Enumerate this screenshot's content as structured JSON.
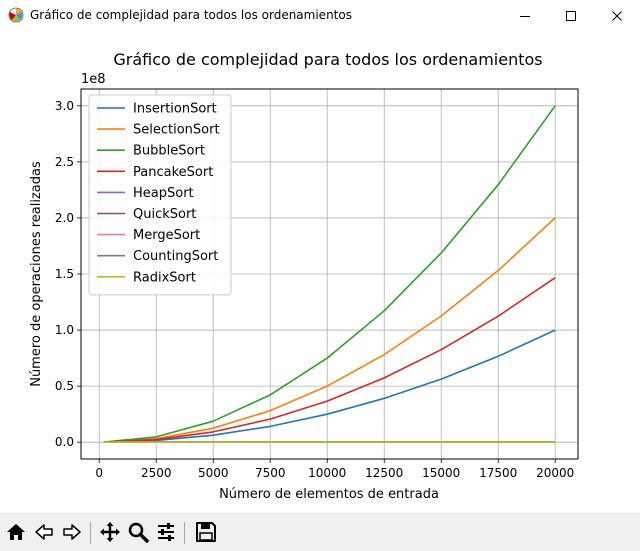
{
  "window": {
    "title": "Gráfico de complejidad para todos los ordenamientos",
    "icon": "matplotlib-icon",
    "controls": [
      "minimize-icon",
      "maximize-icon",
      "close-icon"
    ]
  },
  "toolbar": {
    "buttons": [
      "home-icon",
      "back-icon",
      "forward-icon",
      "pan-icon",
      "zoom-icon",
      "configure-subplots-icon",
      "save-icon"
    ]
  },
  "chart_data": {
    "type": "line",
    "title": "Gráfico de complejidad para todos los ordenamientos",
    "xlabel": "Número de elementos de entrada",
    "ylabel": "Número de operaciones realizadas",
    "y_offset_label": "1e8",
    "xlim": [
      -800,
      21000
    ],
    "ylim": [
      -0.15,
      3.15
    ],
    "x_ticks": [
      0,
      2500,
      5000,
      7500,
      10000,
      12500,
      15000,
      17500,
      20000
    ],
    "x_tick_labels": [
      "0",
      "2500",
      "5000",
      "7500",
      "10000",
      "12500",
      "15000",
      "17500",
      "20000"
    ],
    "y_ticks": [
      0,
      0.5,
      1.0,
      1.5,
      2.0,
      2.5,
      3.0
    ],
    "y_tick_labels": [
      "0.0",
      "0.5",
      "1.0",
      "1.5",
      "2.0",
      "2.5",
      "3.0"
    ],
    "grid": true,
    "legend_position": "upper-left",
    "x": [
      200,
      2500,
      5000,
      7500,
      10000,
      12500,
      15000,
      17500,
      20000
    ],
    "series": [
      {
        "name": "InsertionSort",
        "color": "#1f77b4",
        "values": [
          0.0001,
          0.0156,
          0.0625,
          0.1406,
          0.25,
          0.3906,
          0.5625,
          0.7656,
          1.0
        ]
      },
      {
        "name": "SelectionSort",
        "color": "#ff7f0e",
        "values": [
          0.0002,
          0.0313,
          0.125,
          0.2813,
          0.5,
          0.7813,
          1.125,
          1.5313,
          2.0
        ]
      },
      {
        "name": "BubbleSort",
        "color": "#2ca02c",
        "values": [
          0.0003,
          0.0469,
          0.1875,
          0.4219,
          0.75,
          1.1719,
          1.6875,
          2.2969,
          3.0
        ]
      },
      {
        "name": "PancakeSort",
        "color": "#d62728",
        "values": [
          0.0002,
          0.0229,
          0.0917,
          0.2063,
          0.3668,
          0.5731,
          0.8252,
          1.1232,
          1.467
        ]
      },
      {
        "name": "HeapSort",
        "color": "#9467bd",
        "values": [
          1e-05,
          0.0004,
          0.0008,
          0.0013,
          0.0018,
          0.0023,
          0.0028,
          0.0033,
          0.0038
        ]
      },
      {
        "name": "QuickSort",
        "color": "#8c564b",
        "values": [
          1e-05,
          0.0003,
          0.0006,
          0.001,
          0.0014,
          0.0018,
          0.0022,
          0.0026,
          0.003
        ]
      },
      {
        "name": "MergeSort",
        "color": "#e377c2",
        "values": [
          1e-05,
          0.0003,
          0.0006,
          0.001,
          0.0013,
          0.0017,
          0.0021,
          0.0025,
          0.0029
        ]
      },
      {
        "name": "CountingSort",
        "color": "#7f7f7f",
        "values": [
          5e-06,
          5e-05,
          0.0001,
          0.00015,
          0.0002,
          0.00025,
          0.0003,
          0.00035,
          0.0004
        ]
      },
      {
        "name": "RadixSort",
        "color": "#bcbd22",
        "values": [
          1e-05,
          0.0001,
          0.0002,
          0.0003,
          0.0004,
          0.0005,
          0.0006,
          0.0007,
          0.0008
        ]
      }
    ]
  }
}
